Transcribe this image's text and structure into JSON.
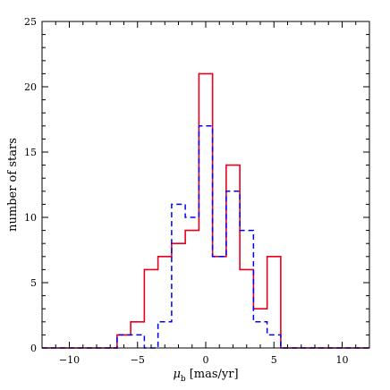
{
  "chart_data": {
    "type": "histogram",
    "title": "",
    "xlabel_symbol": "μ",
    "xlabel_subscript": "b",
    "xlabel_units": "[mas/yr]",
    "ylabel": "number of stars",
    "xlim": [
      -12,
      12
    ],
    "ylim": [
      0,
      25
    ],
    "x_ticks": [
      -10,
      -5,
      0,
      5,
      10
    ],
    "x_tick_labels": [
      "−10",
      "−5",
      "0",
      "5",
      "10"
    ],
    "y_ticks": [
      0,
      5,
      10,
      15,
      20,
      25
    ],
    "y_tick_labels": [
      "0",
      "5",
      "10",
      "15",
      "20",
      "25"
    ],
    "bin_edges": [
      -6.5,
      -5.5,
      -4.5,
      -3.5,
      -2.5,
      -1.5,
      -0.5,
      0.5,
      1.5,
      2.5,
      3.5,
      4.5,
      5.5
    ],
    "series": [
      {
        "style": "solid",
        "color": "#e8001c",
        "values": [
          1,
          2,
          6,
          7,
          8,
          9,
          21,
          7,
          14,
          6,
          3,
          7
        ]
      },
      {
        "style": "dashed",
        "color": "#0000ff",
        "values": [
          1,
          1,
          0,
          2,
          11,
          10,
          17,
          7,
          12,
          9,
          2,
          1
        ]
      }
    ],
    "grid": false,
    "legend": "none"
  }
}
